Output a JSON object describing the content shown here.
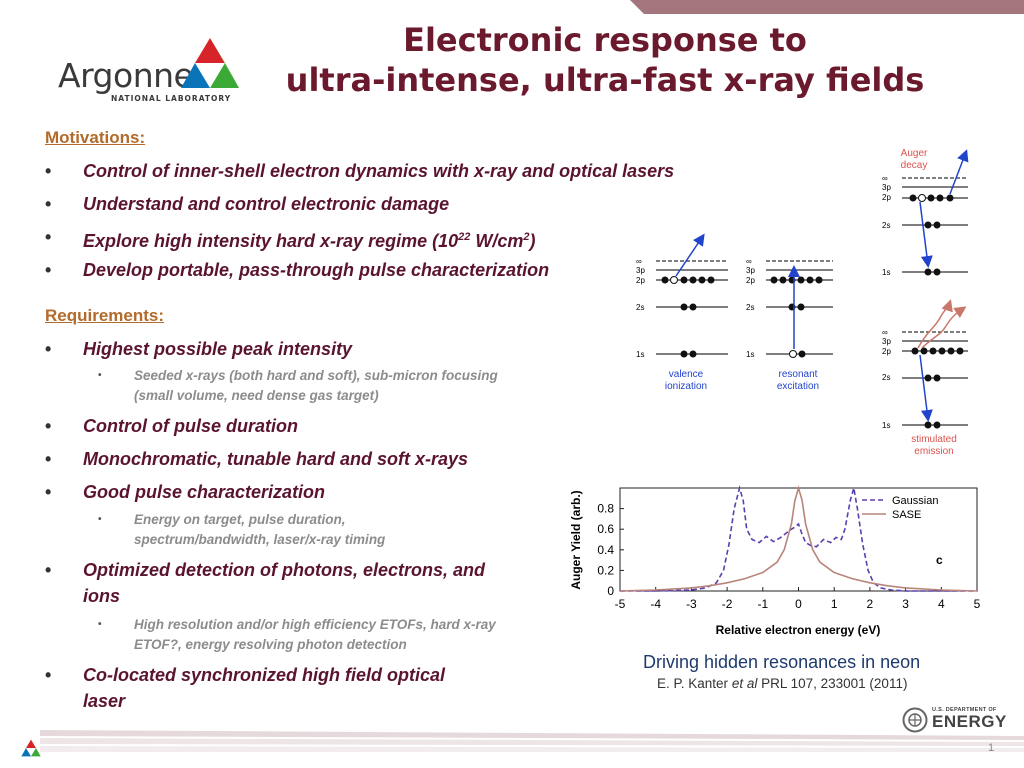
{
  "logo": {
    "word": "Argonne",
    "sub": "NATIONAL LABORATORY"
  },
  "title": {
    "line1": "Electronic response to",
    "line2": "ultra-intense, ultra-fast x-ray fields"
  },
  "motivations": {
    "heading": "Motivations:",
    "items": [
      "Control of inner-shell electron dynamics with x-ray and optical lasers",
      "Understand and control electronic damage",
      "Explore high intensity hard x-ray regime (10",
      "Develop portable, pass-through pulse characterization"
    ],
    "item3_sup1": "22",
    "item3_mid": " W/cm",
    "item3_sup2": "2",
    "item3_end": ")"
  },
  "requirements": {
    "heading": "Requirements:",
    "items": [
      "Highest possible peak intensity",
      "Control of pulse duration",
      "Monochromatic, tunable hard and soft x-rays",
      "Good pulse characterization",
      "Optimized detection of photons, electrons, and ions",
      "Co-located synchronized high field optical laser"
    ],
    "subitems": [
      "Seeded x-rays (both hard and soft), sub-micron focusing (small volume, need dense gas target)",
      "Energy on target, pulse duration, spectrum/bandwidth, laser/x-ray timing",
      "High resolution and/or high efficiency ETOFs, hard x-ray ETOF?, energy resolving photon detection"
    ]
  },
  "bullets": {
    "main": "•",
    "sub": "•"
  },
  "diagram": {
    "levels": [
      "∞",
      "3p",
      "2p",
      "2s",
      "1s"
    ],
    "panels": [
      "valence ionization",
      "resonant excitation",
      "Auger decay",
      "stimulated emission"
    ],
    "label_lines": {
      "valence": [
        "valence",
        "ionization"
      ],
      "resonant": [
        "resonant",
        "excitation"
      ],
      "auger": [
        "Auger",
        "decay"
      ],
      "stimulated": [
        "stimulated",
        "emission"
      ]
    },
    "colors": {
      "arrow": "#2244cc",
      "auger_label": "#d9534f",
      "emission_arrow": "#c8776a"
    }
  },
  "chart_data": {
    "type": "line",
    "xlabel": "Relative electron energy (eV)",
    "ylabel": "Auger Yield (arb.)",
    "xlim": [
      -5,
      5
    ],
    "ylim": [
      0,
      1
    ],
    "xticks": [
      -5,
      -4,
      -3,
      -2,
      -1,
      0,
      1,
      2,
      3,
      4,
      5
    ],
    "yticks": [
      0,
      0.2,
      0.4,
      0.6,
      0.8
    ],
    "panel_label": "c",
    "legend_position": "top-right",
    "series": [
      {
        "name": "Gaussian",
        "style": "dashed",
        "color": "#5b3fb0",
        "x": [
          -5,
          -4,
          -3,
          -2.6,
          -2.3,
          -2.1,
          -1.95,
          -1.8,
          -1.65,
          -1.55,
          -1.45,
          -1.3,
          -1.1,
          -0.9,
          -0.7,
          -0.5,
          -0.35,
          -0.2,
          -0.1,
          0,
          0.1,
          0.2,
          0.35,
          0.5,
          0.7,
          0.9,
          1.05,
          1.2,
          1.3,
          1.45,
          1.55,
          1.65,
          1.8,
          1.95,
          2.1,
          2.3,
          2.6,
          3,
          4,
          5
        ],
        "y": [
          0,
          0,
          0.01,
          0.03,
          0.08,
          0.2,
          0.45,
          0.8,
          1.0,
          0.88,
          0.6,
          0.5,
          0.47,
          0.53,
          0.48,
          0.52,
          0.56,
          0.6,
          0.62,
          0.65,
          0.55,
          0.47,
          0.44,
          0.43,
          0.5,
          0.47,
          0.52,
          0.5,
          0.6,
          0.88,
          1.0,
          0.8,
          0.45,
          0.2,
          0.08,
          0.03,
          0.01,
          0,
          0,
          0
        ]
      },
      {
        "name": "SASE",
        "style": "solid",
        "color": "#b8857a",
        "x": [
          -5,
          -4,
          -3,
          -2.5,
          -2,
          -1.5,
          -1,
          -0.6,
          -0.4,
          -0.2,
          -0.1,
          0,
          0.1,
          0.2,
          0.4,
          0.6,
          1,
          1.5,
          2,
          2.5,
          3,
          4,
          5
        ],
        "y": [
          0,
          0.01,
          0.03,
          0.05,
          0.08,
          0.12,
          0.18,
          0.28,
          0.4,
          0.65,
          0.88,
          1.0,
          0.88,
          0.65,
          0.4,
          0.28,
          0.18,
          0.12,
          0.08,
          0.05,
          0.03,
          0.01,
          0
        ]
      }
    ]
  },
  "caption": "Driving hidden resonances in neon",
  "reference": {
    "authors": "E. P. Kanter ",
    "etal": "et al",
    "citation": " PRL 107, 233001 (2011)"
  },
  "doe": {
    "top": "U.S. DEPARTMENT OF",
    "word": "ENERGY"
  },
  "page_number": "1"
}
